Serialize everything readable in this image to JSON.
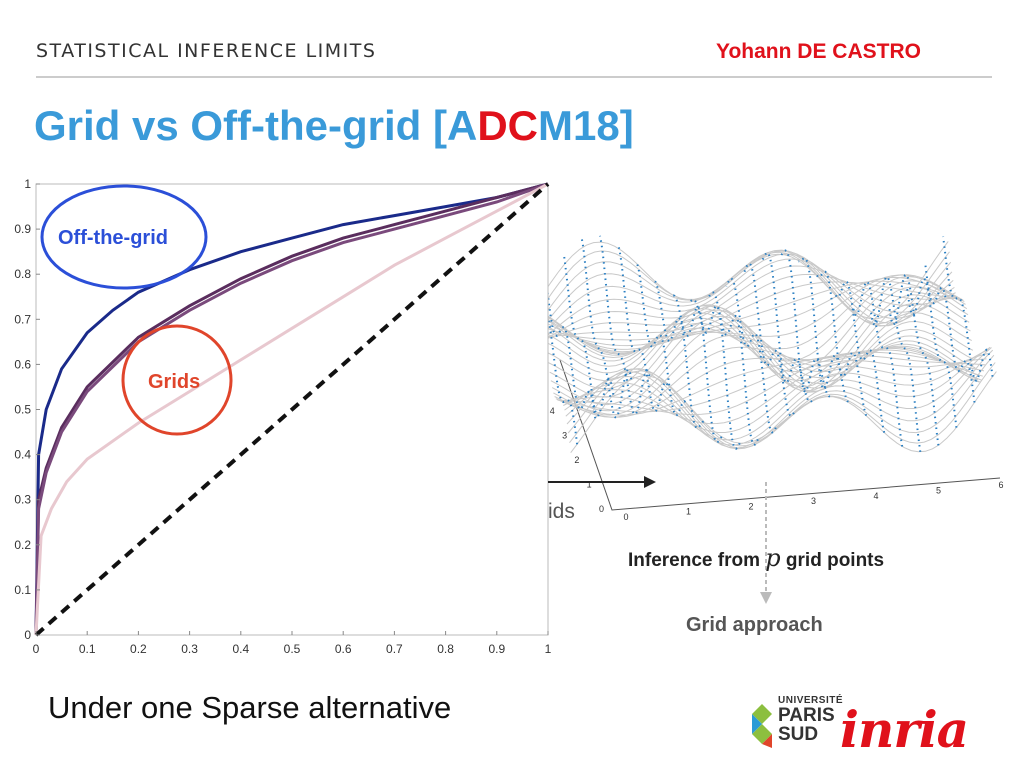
{
  "header": {
    "section": "STATISTICAL INFERENCE LIMITS",
    "author": "Yohann DE CASTRO"
  },
  "title": {
    "prefix": "Grid vs Off-the-grid [A",
    "highlight": "DC",
    "suffix": "M18]"
  },
  "chart_data": {
    "type": "line",
    "xlim": [
      0,
      1
    ],
    "ylim": [
      0,
      1
    ],
    "x_ticks": [
      "0",
      "0.1",
      "0.2",
      "0.3",
      "0.4",
      "0.5",
      "0.6",
      "0.7",
      "0.8",
      "0.9",
      "1"
    ],
    "y_ticks": [
      "0",
      "0.1",
      "0.2",
      "0.3",
      "0.4",
      "0.5",
      "0.6",
      "0.7",
      "0.8",
      "0.9",
      "1"
    ],
    "grid": false,
    "series": [
      {
        "color": "#1a2a8a",
        "x": [
          0,
          0.005,
          0.02,
          0.05,
          0.1,
          0.15,
          0.2,
          0.3,
          0.4,
          0.5,
          0.6,
          0.7,
          0.8,
          0.9,
          1
        ],
        "y": [
          0,
          0.4,
          0.5,
          0.59,
          0.67,
          0.72,
          0.76,
          0.81,
          0.85,
          0.88,
          0.91,
          0.93,
          0.95,
          0.97,
          1
        ]
      },
      {
        "color": "#5a2d5e",
        "x": [
          0,
          0.005,
          0.02,
          0.05,
          0.1,
          0.2,
          0.3,
          0.4,
          0.5,
          0.6,
          0.7,
          0.8,
          0.9,
          1
        ],
        "y": [
          0,
          0.3,
          0.37,
          0.46,
          0.55,
          0.66,
          0.73,
          0.79,
          0.84,
          0.88,
          0.91,
          0.94,
          0.97,
          1
        ]
      },
      {
        "color": "#7a4a7c",
        "x": [
          0,
          0.005,
          0.02,
          0.05,
          0.1,
          0.2,
          0.3,
          0.4,
          0.5,
          0.6,
          0.7,
          0.8,
          0.9,
          1
        ],
        "y": [
          0,
          0.28,
          0.36,
          0.45,
          0.54,
          0.65,
          0.72,
          0.78,
          0.83,
          0.87,
          0.9,
          0.93,
          0.96,
          1
        ]
      },
      {
        "color": "#e8c8cf",
        "x": [
          0,
          0.01,
          0.03,
          0.06,
          0.1,
          0.2,
          0.3,
          0.4,
          0.5,
          0.6,
          0.7,
          0.8,
          0.9,
          1
        ],
        "y": [
          0,
          0.22,
          0.28,
          0.34,
          0.39,
          0.47,
          0.54,
          0.61,
          0.68,
          0.75,
          0.82,
          0.88,
          0.94,
          1
        ]
      },
      {
        "color": "#111111",
        "dashed": true,
        "x": [
          0,
          1
        ],
        "y": [
          0,
          1
        ]
      }
    ],
    "annotations": [
      {
        "text": "Off-the-grid",
        "color": "#2b4fd8"
      },
      {
        "text": "Grids",
        "color": "#e0452b"
      }
    ]
  },
  "surface_plot": {
    "x_ticks": [
      "0",
      "1",
      "2",
      "3",
      "4",
      "5",
      "6"
    ],
    "y_ticks": [
      "0",
      "1",
      "2",
      "3",
      "4"
    ],
    "partial_label": "ids"
  },
  "labels": {
    "inference_prefix": "Inference from",
    "inference_var": "p",
    "inference_suffix": "grid points",
    "grid_approach": "Grid approach"
  },
  "caption": "Under one Sparse alternative",
  "logos": {
    "univ_line1": "UNIVERSITÉ",
    "univ_line2": "PARIS",
    "univ_line3": "SUD",
    "inria": "inria"
  },
  "colors": {
    "accent": "#3a9ad9",
    "red": "#e0111b"
  }
}
